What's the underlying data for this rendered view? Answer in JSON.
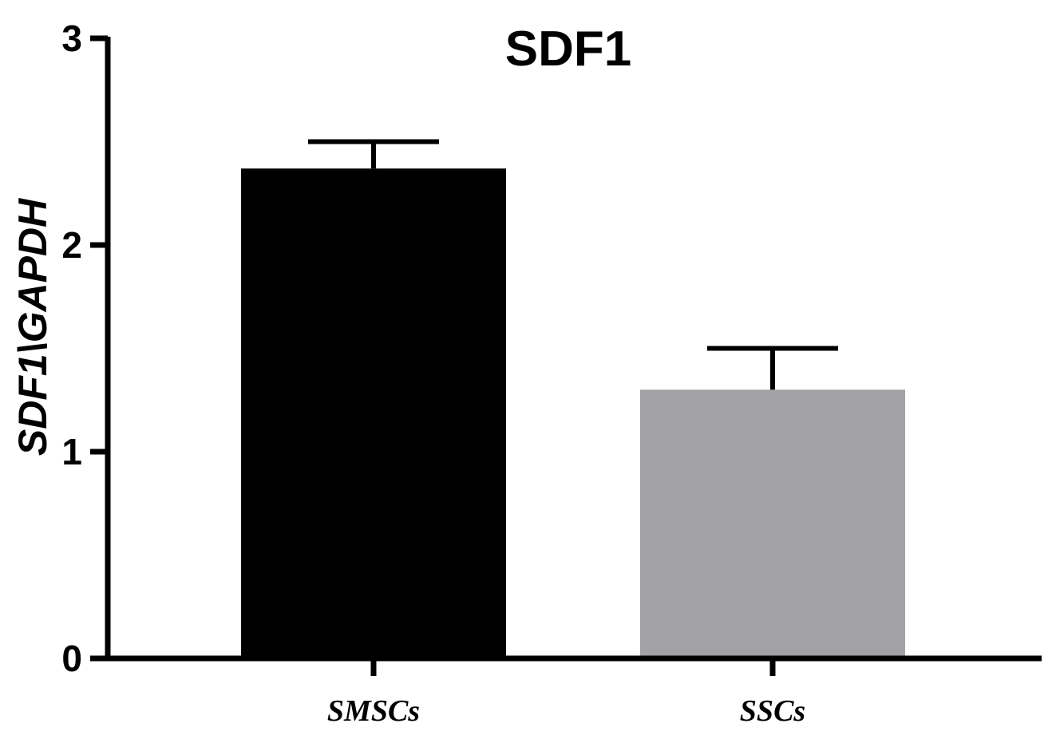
{
  "chart_data": {
    "type": "bar",
    "title": "SDF1",
    "xlabel": "",
    "ylabel": "SDF1\\GAPDH",
    "categories": [
      "SMSCs",
      "SSCs"
    ],
    "values": [
      2.37,
      1.3
    ],
    "errors": [
      0.13,
      0.2
    ],
    "ylim": [
      0,
      3
    ],
    "yticks": [
      "0",
      "1",
      "2",
      "3"
    ],
    "grid": false,
    "legend": "none",
    "colors": {
      "bars": [
        "#000000",
        "#a2a2a6"
      ],
      "axis": "#000000",
      "error_bars": "#000000"
    }
  }
}
